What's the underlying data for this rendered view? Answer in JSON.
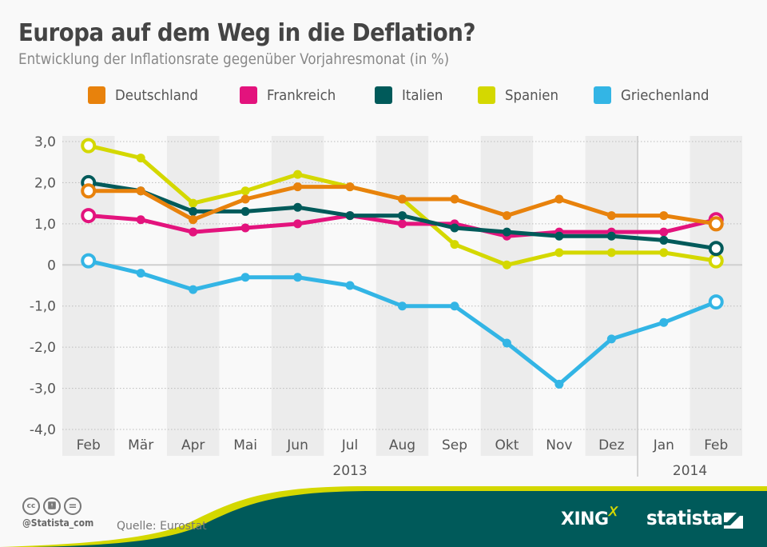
{
  "header": {
    "title": "Europa auf dem Weg in die Deflation?",
    "subtitle": "Entwicklung der Inflationsrate gegenüber Vorjahresmonat (in %)"
  },
  "legend": [
    {
      "label": "Deutschland",
      "color": "#e8820c"
    },
    {
      "label": "Frankreich",
      "color": "#e3137d"
    },
    {
      "label": "Italien",
      "color": "#005a5a"
    },
    {
      "label": "Spanien",
      "color": "#d4d800"
    },
    {
      "label": "Griechenland",
      "color": "#33b5e5"
    }
  ],
  "chart_data": {
    "type": "line",
    "title": "Europa auf dem Weg in die Deflation?",
    "subtitle": "Entwicklung der Inflationsrate gegenüber Vorjahresmonat (in %)",
    "xlabel": "",
    "ylabel": "",
    "categories": [
      "Feb",
      "Mär",
      "Apr",
      "Mai",
      "Jun",
      "Jul",
      "Aug",
      "Sep",
      "Okt",
      "Nov",
      "Dez",
      "Jan",
      "Feb"
    ],
    "year_groups": [
      {
        "label": "2013",
        "from": 0,
        "to": 10
      },
      {
        "label": "2014",
        "from": 11,
        "to": 12
      }
    ],
    "ylim": [
      -4.0,
      3.0
    ],
    "yticks": [
      3.0,
      2.0,
      1.0,
      0,
      -1.0,
      -2.0,
      -3.0,
      -4.0
    ],
    "ytick_labels": [
      "3,0",
      "2,0",
      "1,0",
      "0",
      "-1,0",
      "-2,0",
      "-3,0",
      "-4,0"
    ],
    "grid": true,
    "legend_position": "top",
    "series": [
      {
        "name": "Deutschland",
        "color": "#e8820c",
        "values": [
          1.8,
          1.8,
          1.1,
          1.6,
          1.9,
          1.9,
          1.6,
          1.6,
          1.2,
          1.6,
          1.2,
          1.2,
          1.0
        ]
      },
      {
        "name": "Frankreich",
        "color": "#e3137d",
        "values": [
          1.2,
          1.1,
          0.8,
          0.9,
          1.0,
          1.2,
          1.0,
          1.0,
          0.7,
          0.8,
          0.8,
          0.8,
          1.1
        ]
      },
      {
        "name": "Italien",
        "color": "#005a5a",
        "values": [
          2.0,
          1.8,
          1.3,
          1.3,
          1.4,
          1.2,
          1.2,
          0.9,
          0.8,
          0.7,
          0.7,
          0.6,
          0.4
        ]
      },
      {
        "name": "Spanien",
        "color": "#d4d800",
        "values": [
          2.9,
          2.6,
          1.5,
          1.8,
          2.2,
          1.9,
          1.6,
          0.5,
          0.0,
          0.3,
          0.3,
          0.3,
          0.1
        ]
      },
      {
        "name": "Griechenland",
        "color": "#33b5e5",
        "values": [
          0.1,
          -0.2,
          -0.6,
          -0.3,
          -0.3,
          -0.5,
          -1.0,
          -1.0,
          -1.9,
          -2.9,
          -1.8,
          -1.4,
          -0.9
        ]
      }
    ]
  },
  "footer": {
    "license_icons": [
      "cc-icon",
      "by-icon",
      "nd-icon"
    ],
    "handle": "@Statista_com",
    "source": "Quelle: Eurostat",
    "brand_xing": "XING",
    "brand_statista": "statista",
    "brand_colors": {
      "dark": "#005a5a",
      "accent": "#d4d800"
    }
  }
}
